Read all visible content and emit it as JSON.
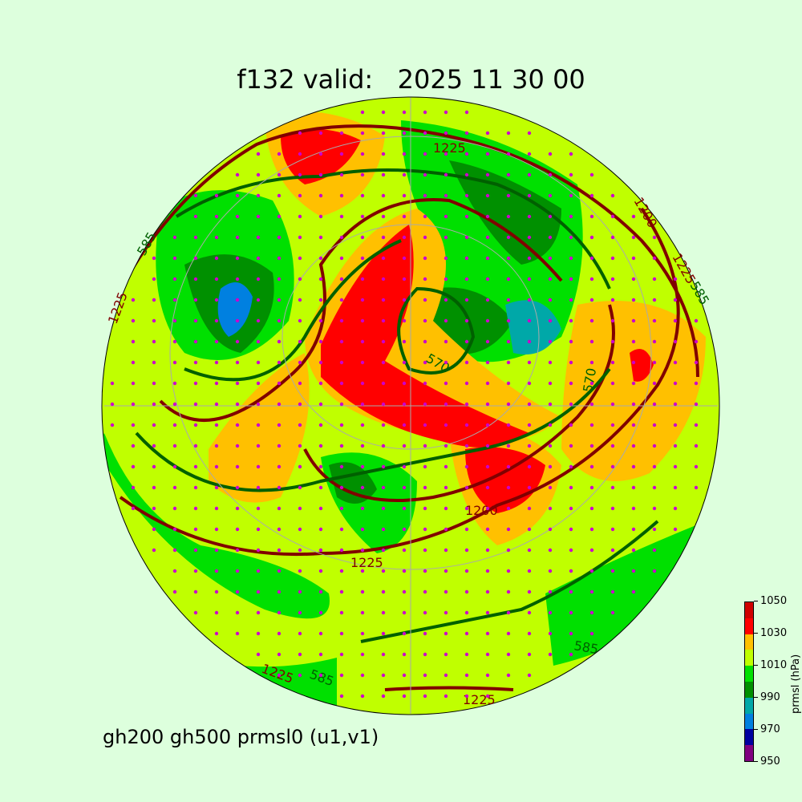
{
  "title": "f132 valid:   2025 11 30 00",
  "subtitle": "gh200 gh500 prmsl0 (u1,v1)",
  "colorbar": {
    "label": "prmsl (hPa)",
    "ticks": [
      "950",
      "970",
      "990",
      "1010",
      "1030",
      "1050"
    ],
    "levels": [
      950,
      960,
      970,
      980,
      990,
      1000,
      1010,
      1020,
      1030,
      1040,
      1050
    ],
    "colors": [
      "#800080",
      "#0000a0",
      "#0080e0",
      "#00a8a8",
      "#009000",
      "#00e000",
      "#c0ff00",
      "#ffc000",
      "#ff0000",
      "#d00000"
    ]
  },
  "contour_labels": {
    "gh200": [
      "1200",
      "1225",
      "1225",
      "1225",
      "1225",
      "1200",
      "1225",
      "1225"
    ],
    "gh500": [
      "585",
      "570",
      "570",
      "585",
      "585",
      "585"
    ]
  },
  "colors": {
    "gh200": "#800000",
    "gh500": "#006000",
    "wind_barbs": "#000000",
    "wind_dots": "#cc00cc",
    "background": "#ddffdd"
  }
}
